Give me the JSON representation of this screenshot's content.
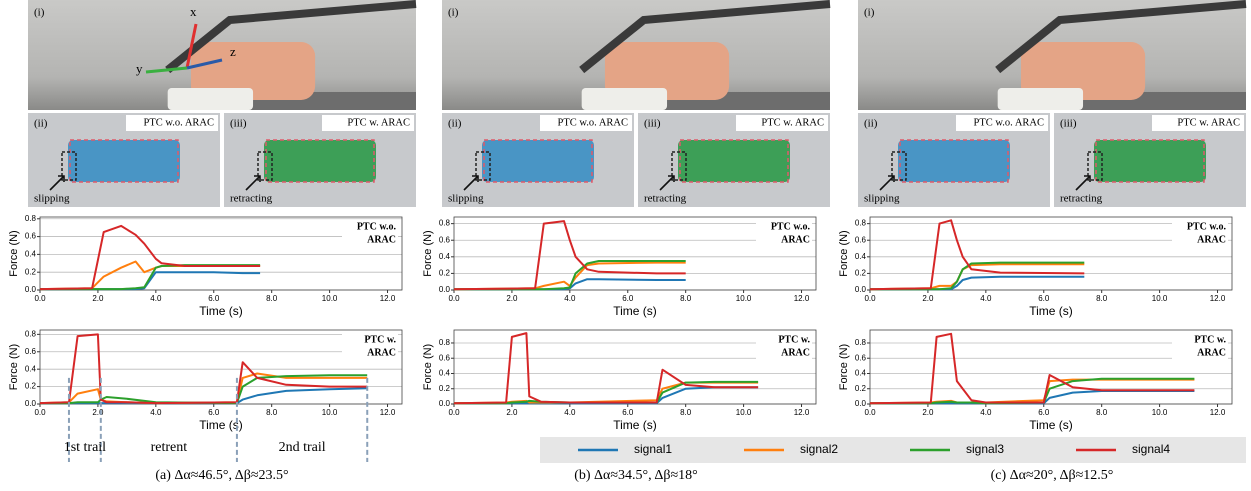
{
  "figure": {
    "axes": [
      "x",
      "y",
      "z"
    ],
    "columns": [
      {
        "caption": "(a) Δα≈46.5°, Δβ≈23.5°",
        "top_label": "(i)",
        "left_label": "(ii)",
        "left_tag": "PTC w.o. ARAC",
        "left_note": "slipping",
        "right_label": "(iii)",
        "right_tag": "PTC w. ARAC",
        "right_note": "retracting"
      },
      {
        "caption": "(b) Δα≈34.5°, Δβ≈18°",
        "top_label": "(i)",
        "left_label": "(ii)",
        "left_tag": "PTC w.o. ARAC",
        "left_note": "slipping",
        "right_label": "(iii)",
        "right_tag": "PTC w. ARAC",
        "right_note": "retracting"
      },
      {
        "caption": "(c) Δα≈20°, Δβ≈12.5°",
        "top_label": "(i)",
        "left_label": "(ii)",
        "left_tag": "PTC w.o. ARAC",
        "left_note": "slipping",
        "right_label": "(iii)",
        "right_tag": "PTC w. ARAC",
        "right_note": "retracting"
      }
    ]
  },
  "chart_data": [
    {
      "type": "line",
      "title": [
        "PTC w.o.",
        "ARAC"
      ],
      "xlabel": "Time (s)",
      "ylabel": "Force (N)",
      "grid": true,
      "xlim": [
        0,
        12.5
      ],
      "ylim": [
        0,
        0.82
      ],
      "xticks": [
        {
          "value": 0,
          "label": "0.0"
        },
        {
          "value": 2,
          "label": "2.0"
        },
        {
          "value": 4,
          "label": "4.0"
        },
        {
          "value": 6,
          "label": "6.0"
        },
        {
          "value": 8,
          "label": "8.0"
        },
        {
          "value": 10,
          "label": "10.0"
        },
        {
          "value": 12,
          "label": "12.0"
        }
      ],
      "yticks": [
        {
          "value": 0,
          "label": "0.0"
        },
        0.2,
        0.4,
        0.6,
        0.8
      ],
      "x": [
        0,
        1.8,
        2.2,
        2.8,
        3.3,
        3.6,
        4.0,
        4.2,
        5,
        6,
        7,
        7.6
      ],
      "series": [
        {
          "name": "signal1",
          "color": "#1f77b4",
          "values": [
            0.01,
            0.01,
            0.01,
            0.01,
            0.01,
            0.02,
            0.2,
            0.2,
            0.2,
            0.2,
            0.19,
            0.19
          ]
        },
        {
          "name": "signal2",
          "color": "#ff7f0e",
          "values": [
            0.01,
            0.02,
            0.15,
            0.25,
            0.32,
            0.2,
            0.25,
            0.27,
            0.27,
            0.27,
            0.27,
            0.27
          ]
        },
        {
          "name": "signal3",
          "color": "#2ca02c",
          "values": [
            0.01,
            0.01,
            0.01,
            0.01,
            0.02,
            0.03,
            0.25,
            0.27,
            0.28,
            0.28,
            0.28,
            0.28
          ]
        },
        {
          "name": "signal4",
          "color": "#d62728",
          "values": [
            0.01,
            0.02,
            0.65,
            0.72,
            0.62,
            0.52,
            0.35,
            0.3,
            0.27,
            0.27,
            0.27,
            0.27
          ]
        }
      ]
    },
    {
      "type": "line",
      "title": [
        "PTC w.",
        "ARAC"
      ],
      "xlabel": "Time (s)",
      "ylabel": "Force (N)",
      "grid": true,
      "xlim": [
        0,
        12.5
      ],
      "ylim": [
        0,
        0.85
      ],
      "xticks": [
        {
          "value": 0,
          "label": "0.0"
        },
        {
          "value": 2,
          "label": "2.0"
        },
        {
          "value": 4,
          "label": "4.0"
        },
        {
          "value": 6,
          "label": "6.0"
        },
        {
          "value": 8,
          "label": "8.0"
        },
        {
          "value": 10,
          "label": "10.0"
        },
        {
          "value": 12,
          "label": "12.0"
        }
      ],
      "yticks": [
        {
          "value": 0,
          "label": "0.0"
        },
        0.2,
        0.4,
        0.6,
        0.8
      ],
      "phases": {
        "lines": [
          1.0,
          2.1,
          6.8,
          11.3
        ],
        "labels": [
          "1st trail",
          "retrent",
          "2nd trail"
        ]
      },
      "x": [
        0,
        1.0,
        1.3,
        2.0,
        2.1,
        2.3,
        3.0,
        4.0,
        6.8,
        7.0,
        7.5,
        8.5,
        10,
        11.3
      ],
      "series": [
        {
          "name": "signal1",
          "color": "#1f77b4",
          "values": [
            0.01,
            0.01,
            0.01,
            0.01,
            0.01,
            0.01,
            0.01,
            0.01,
            0.01,
            0.05,
            0.1,
            0.15,
            0.17,
            0.18
          ]
        },
        {
          "name": "signal2",
          "color": "#ff7f0e",
          "values": [
            0.01,
            0.02,
            0.12,
            0.17,
            0.05,
            0.03,
            0.02,
            0.01,
            0.02,
            0.3,
            0.35,
            0.3,
            0.3,
            0.3
          ]
        },
        {
          "name": "signal3",
          "color": "#2ca02c",
          "values": [
            0.01,
            0.01,
            0.02,
            0.02,
            0.05,
            0.08,
            0.06,
            0.02,
            0.01,
            0.2,
            0.3,
            0.32,
            0.33,
            0.33
          ]
        },
        {
          "name": "signal4",
          "color": "#d62728",
          "values": [
            0.01,
            0.02,
            0.78,
            0.8,
            0.05,
            0.02,
            0.02,
            0.01,
            0.02,
            0.48,
            0.3,
            0.22,
            0.2,
            0.2
          ]
        }
      ]
    },
    {
      "type": "line",
      "title": [
        "PTC w.o.",
        "ARAC"
      ],
      "xlabel": "Time (s)",
      "ylabel": "Force (N)",
      "grid": true,
      "xlim": [
        0,
        12.5
      ],
      "ylim": [
        0,
        0.88
      ],
      "xticks": [
        {
          "value": 0,
          "label": "0.0"
        },
        {
          "value": 2,
          "label": "2.0"
        },
        {
          "value": 4,
          "label": "4.0"
        },
        {
          "value": 6,
          "label": "6.0"
        },
        {
          "value": 8,
          "label": "8.0"
        },
        {
          "value": 10,
          "label": "10.0"
        },
        {
          "value": 12,
          "label": "12.0"
        }
      ],
      "yticks": [
        {
          "value": 0,
          "label": "0.0"
        },
        0.2,
        0.4,
        0.6,
        0.8
      ],
      "x": [
        0,
        2.8,
        3.1,
        3.8,
        4.0,
        4.2,
        4.6,
        5,
        7,
        8.0
      ],
      "series": [
        {
          "name": "signal1",
          "color": "#1f77b4",
          "values": [
            0.01,
            0.01,
            0.01,
            0.01,
            0.02,
            0.08,
            0.13,
            0.13,
            0.12,
            0.12
          ]
        },
        {
          "name": "signal2",
          "color": "#ff7f0e",
          "values": [
            0.01,
            0.02,
            0.05,
            0.1,
            0.05,
            0.15,
            0.3,
            0.32,
            0.33,
            0.33
          ]
        },
        {
          "name": "signal3",
          "color": "#2ca02c",
          "values": [
            0.01,
            0.01,
            0.01,
            0.02,
            0.03,
            0.2,
            0.32,
            0.35,
            0.35,
            0.35
          ]
        },
        {
          "name": "signal4",
          "color": "#d62728",
          "values": [
            0.01,
            0.02,
            0.8,
            0.83,
            0.6,
            0.4,
            0.25,
            0.22,
            0.2,
            0.2
          ]
        }
      ]
    },
    {
      "type": "line",
      "title": [
        "PTC w.",
        "ARAC"
      ],
      "xlabel": "Time (s)",
      "ylabel": "Force (N)",
      "grid": true,
      "xlim": [
        0,
        12.5
      ],
      "ylim": [
        0,
        0.97
      ],
      "xticks": [
        {
          "value": 0,
          "label": "0.0"
        },
        {
          "value": 2,
          "label": "2.0"
        },
        {
          "value": 4,
          "label": "4.0"
        },
        {
          "value": 6,
          "label": "6.0"
        },
        {
          "value": 8,
          "label": "8.0"
        },
        {
          "value": 10,
          "label": "10.0"
        },
        {
          "value": 12,
          "label": "12.0"
        }
      ],
      "yticks": [
        {
          "value": 0,
          "label": "0.0"
        },
        0.2,
        0.4,
        0.6,
        0.8
      ],
      "x": [
        0,
        1.8,
        2.0,
        2.5,
        2.6,
        3.0,
        4,
        7.0,
        7.2,
        8,
        9,
        10.5
      ],
      "series": [
        {
          "name": "signal1",
          "color": "#1f77b4",
          "values": [
            0.01,
            0.01,
            0.01,
            0.01,
            0.01,
            0.01,
            0.01,
            0.01,
            0.08,
            0.2,
            0.22,
            0.22
          ]
        },
        {
          "name": "signal2",
          "color": "#ff7f0e",
          "values": [
            0.01,
            0.02,
            0.03,
            0.04,
            0.02,
            0.02,
            0.02,
            0.05,
            0.2,
            0.28,
            0.28,
            0.28
          ]
        },
        {
          "name": "signal3",
          "color": "#2ca02c",
          "values": [
            0.01,
            0.01,
            0.02,
            0.03,
            0.04,
            0.03,
            0.02,
            0.02,
            0.15,
            0.28,
            0.29,
            0.29
          ]
        },
        {
          "name": "signal4",
          "color": "#d62728",
          "values": [
            0.01,
            0.02,
            0.88,
            0.93,
            0.1,
            0.03,
            0.02,
            0.02,
            0.45,
            0.25,
            0.22,
            0.22
          ]
        }
      ]
    },
    {
      "type": "line",
      "title": [
        "PTC w.o.",
        "ARAC"
      ],
      "xlabel": "Time (s)",
      "ylabel": "Force (N)",
      "grid": true,
      "xlim": [
        0,
        12.5
      ],
      "ylim": [
        0,
        0.88
      ],
      "xticks": [
        {
          "value": 0,
          "label": "0.0"
        },
        {
          "value": 2,
          "label": "2.0"
        },
        {
          "value": 4,
          "label": "4.0"
        },
        {
          "value": 6,
          "label": "6.0"
        },
        {
          "value": 8,
          "label": "8.0"
        },
        {
          "value": 10,
          "label": "10.0"
        },
        {
          "value": 12,
          "label": "12.0"
        }
      ],
      "yticks": [
        {
          "value": 0,
          "label": "0.0"
        },
        0.2,
        0.4,
        0.6,
        0.8
      ],
      "x": [
        0,
        2.1,
        2.4,
        2.8,
        3.0,
        3.2,
        3.5,
        4.5,
        7.4
      ],
      "series": [
        {
          "name": "signal1",
          "color": "#1f77b4",
          "values": [
            0.01,
            0.01,
            0.01,
            0.01,
            0.05,
            0.12,
            0.15,
            0.16,
            0.16
          ]
        },
        {
          "name": "signal2",
          "color": "#ff7f0e",
          "values": [
            0.01,
            0.02,
            0.05,
            0.05,
            0.1,
            0.25,
            0.3,
            0.31,
            0.31
          ]
        },
        {
          "name": "signal3",
          "color": "#2ca02c",
          "values": [
            0.01,
            0.01,
            0.01,
            0.02,
            0.1,
            0.25,
            0.32,
            0.33,
            0.33
          ]
        },
        {
          "name": "signal4",
          "color": "#d62728",
          "values": [
            0.01,
            0.02,
            0.8,
            0.84,
            0.6,
            0.4,
            0.25,
            0.21,
            0.2
          ]
        }
      ]
    },
    {
      "type": "line",
      "title": [
        "PTC w.",
        "ARAC"
      ],
      "xlabel": "Time (s)",
      "ylabel": "Force (N)",
      "grid": true,
      "xlim": [
        0,
        12.5
      ],
      "ylim": [
        0,
        0.97
      ],
      "xticks": [
        {
          "value": 0,
          "label": "0.0"
        },
        {
          "value": 2,
          "label": "2.0"
        },
        {
          "value": 4,
          "label": "4.0"
        },
        {
          "value": 6,
          "label": "6.0"
        },
        {
          "value": 8,
          "label": "8.0"
        },
        {
          "value": 10,
          "label": "10.0"
        },
        {
          "value": 12,
          "label": "12.0"
        }
      ],
      "yticks": [
        {
          "value": 0,
          "label": "0.0"
        },
        0.2,
        0.4,
        0.6,
        0.8
      ],
      "x": [
        0,
        2.1,
        2.3,
        2.8,
        3.0,
        3.5,
        4,
        6.0,
        6.2,
        7,
        8,
        11.2
      ],
      "series": [
        {
          "name": "signal1",
          "color": "#1f77b4",
          "values": [
            0.01,
            0.01,
            0.01,
            0.01,
            0.01,
            0.01,
            0.01,
            0.01,
            0.08,
            0.15,
            0.17,
            0.17
          ]
        },
        {
          "name": "signal2",
          "color": "#ff7f0e",
          "values": [
            0.01,
            0.02,
            0.03,
            0.04,
            0.02,
            0.02,
            0.02,
            0.05,
            0.3,
            0.32,
            0.32,
            0.32
          ]
        },
        {
          "name": "signal3",
          "color": "#2ca02c",
          "values": [
            0.01,
            0.01,
            0.02,
            0.03,
            0.02,
            0.02,
            0.01,
            0.02,
            0.2,
            0.3,
            0.33,
            0.33
          ]
        },
        {
          "name": "signal4",
          "color": "#d62728",
          "values": [
            0.01,
            0.02,
            0.88,
            0.92,
            0.3,
            0.05,
            0.02,
            0.02,
            0.38,
            0.22,
            0.18,
            0.18
          ]
        }
      ]
    }
  ]
}
